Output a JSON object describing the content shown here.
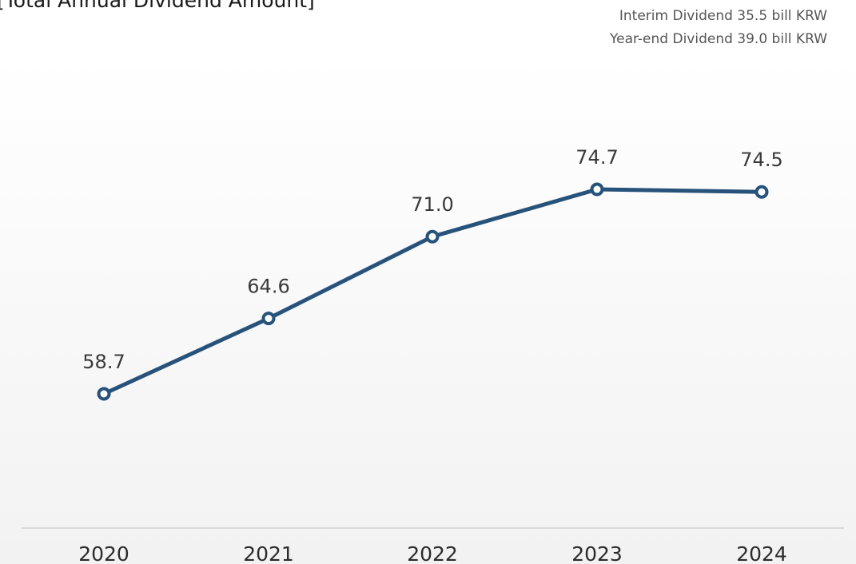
{
  "title": "[Total Annual Dividend Amount]",
  "note": {
    "line1": "Interim Dividend 35.5 bill KRW",
    "line2": "Year-end Dividend 39.0 bill KRW"
  },
  "colors": {
    "line": "#27527a",
    "marker_fill": "#ffffff",
    "axis": "#d9d9d9"
  },
  "chart_data": {
    "type": "line",
    "title": "[Total Annual Dividend Amount]",
    "categories": [
      "2020",
      "2021",
      "2022",
      "2023",
      "2024"
    ],
    "values": [
      58.7,
      64.6,
      71.0,
      74.7,
      74.5
    ],
    "data_labels": [
      "58.7",
      "64.6",
      "71.0",
      "74.7",
      "74.5"
    ],
    "xlabel": "",
    "ylabel": "",
    "grid": false,
    "legend": "none"
  }
}
